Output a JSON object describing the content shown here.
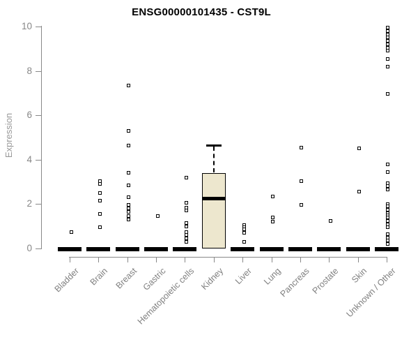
{
  "title": "ENSG00000101435 - CST9L",
  "y_axis": {
    "label": "Expression",
    "ticks": [
      0,
      2,
      4,
      6,
      8,
      10
    ],
    "range": [
      0,
      10
    ]
  },
  "colors": {
    "axis": "#888888",
    "y_tick_label": "#878787",
    "x_tick_label": "#808080",
    "title": "#000000",
    "box_fill": "#EDE7CE",
    "box_border": "#000000",
    "point": "#000000"
  },
  "chart_data": {
    "type": "boxplot",
    "title": "ENSG00000101435 - CST9L",
    "xlabel": "",
    "ylabel": "Expression",
    "ylim": [
      0,
      10
    ],
    "yticks": [
      0,
      2,
      4,
      6,
      8,
      10
    ],
    "grid": false,
    "legend": false,
    "categories": [
      "Bladder",
      "Brain",
      "Breast",
      "Gastric",
      "Hematopoietic cells",
      "Kidney",
      "Liver",
      "Lung",
      "Pancreas",
      "Prostate",
      "Skin",
      "Unknown / Other"
    ],
    "series": [
      {
        "category": "Bladder",
        "box": {
          "q1": 0,
          "median": 0,
          "q3": 0
        },
        "points": [
          0.75
        ]
      },
      {
        "category": "Brain",
        "box": {
          "q1": 0,
          "median": 0,
          "q3": 0
        },
        "points": [
          3.05,
          2.9,
          2.5,
          2.15,
          1.55,
          0.95
        ]
      },
      {
        "category": "Breast",
        "box": {
          "q1": 0,
          "median": 0,
          "q3": 0
        },
        "points": [
          7.35,
          5.3,
          4.65,
          3.4,
          2.85,
          2.3,
          1.95,
          1.8,
          1.65,
          1.45,
          1.3
        ]
      },
      {
        "category": "Gastric",
        "box": {
          "q1": 0,
          "median": 0,
          "q3": 0
        },
        "points": [
          1.45
        ]
      },
      {
        "category": "Hematopoietic cells",
        "box": {
          "q1": 0,
          "median": 0,
          "q3": 0
        },
        "points": [
          3.2,
          2.05,
          1.85,
          1.7,
          1.15,
          1.0,
          0.75,
          0.6,
          0.45,
          0.3
        ]
      },
      {
        "category": "Kidney",
        "box": {
          "q1": 0,
          "median": 2.25,
          "q3": 3.4,
          "whisker_high": 4.65
        },
        "points": []
      },
      {
        "category": "Liver",
        "box": {
          "q1": 0,
          "median": 0,
          "q3": 0
        },
        "points": [
          1.05,
          0.95,
          0.85,
          0.7,
          0.3
        ]
      },
      {
        "category": "Lung",
        "box": {
          "q1": 0,
          "median": 0,
          "q3": 0
        },
        "points": [
          2.35,
          1.4,
          1.2
        ]
      },
      {
        "category": "Pancreas",
        "box": {
          "q1": 0,
          "median": 0,
          "q3": 0
        },
        "points": [
          4.55,
          3.05,
          1.95
        ]
      },
      {
        "category": "Prostate",
        "box": {
          "q1": 0,
          "median": 0,
          "q3": 0
        },
        "points": [
          1.25
        ]
      },
      {
        "category": "Skin",
        "box": {
          "q1": 0,
          "median": 0,
          "q3": 0
        },
        "points": [
          4.5,
          2.55
        ]
      },
      {
        "category": "Unknown / Other",
        "box": {
          "q1": 0,
          "median": 0,
          "q3": 0
        },
        "points": [
          9.95,
          9.8,
          9.65,
          9.5,
          9.35,
          9.2,
          9.05,
          8.9,
          8.55,
          8.2,
          6.95,
          3.8,
          3.45,
          2.95,
          2.8,
          2.65,
          2.0,
          1.9,
          1.75,
          1.6,
          1.5,
          1.4,
          1.25,
          1.1,
          0.95,
          0.65,
          0.5,
          0.35,
          0.2
        ]
      }
    ]
  }
}
